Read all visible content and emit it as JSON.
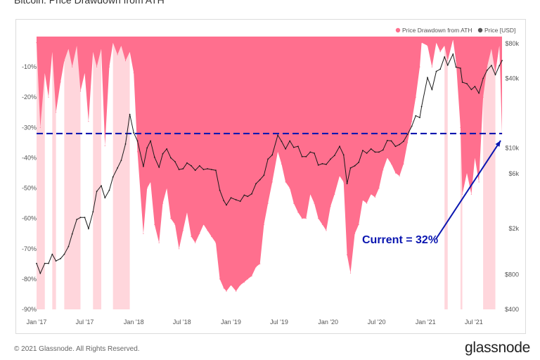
{
  "header": {
    "title": "Bitcoin: Price Drawdown from ATH"
  },
  "footer": {
    "copyright": "© 2021 Glassnode. All Rights Reserved.",
    "brand": "glassnode"
  },
  "colors": {
    "drawdown_fill": "#ff6f8e",
    "highlight_band": "#ffd6dc",
    "price_line": "#1a1a1a",
    "current_line": "#0a16b0",
    "annotation": "#0a16b0"
  },
  "chart_data": {
    "type": "area",
    "title": "Bitcoin: Price Drawdown from ATH",
    "legend": [
      {
        "name": "Price Drawdown from ATH",
        "color": "#ff6f8e",
        "marker": "circle"
      },
      {
        "name": "Price [USD]",
        "color": "#555555",
        "marker": "circle"
      }
    ],
    "legend_position": "top-right",
    "x_ticks": [
      "Jan '17",
      "Jul '17",
      "Jan '18",
      "Jul '18",
      "Jan '19",
      "Jul '19",
      "Jan '20",
      "Jul '20",
      "Jan '21",
      "Jul '21"
    ],
    "x_range": [
      "2017-01-01",
      "2021-10-15"
    ],
    "y_left": {
      "label": "Price Drawdown from ATH",
      "ticks": [
        "-10%",
        "-20%",
        "-30%",
        "-40%",
        "-50%",
        "-60%",
        "-70%",
        "-80%",
        "-90%"
      ],
      "range": [
        -90,
        0
      ]
    },
    "y_right": {
      "label": "Price [USD]",
      "scale": "log",
      "ticks": [
        "$80k",
        "$40k",
        "$10k",
        "$6k",
        "$2k",
        "$800",
        "$400"
      ],
      "range": [
        400,
        80000
      ]
    },
    "grid": false,
    "series": [
      {
        "name": "Price Drawdown from ATH",
        "unit": "percent",
        "x": [
          "2017-01-01",
          "2017-01-15",
          "2017-02-01",
          "2017-02-15",
          "2017-03-01",
          "2017-03-15",
          "2017-04-01",
          "2017-04-15",
          "2017-05-01",
          "2017-05-15",
          "2017-06-01",
          "2017-06-15",
          "2017-07-01",
          "2017-07-15",
          "2017-08-01",
          "2017-08-15",
          "2017-09-01",
          "2017-09-15",
          "2017-10-01",
          "2017-10-15",
          "2017-11-01",
          "2017-11-15",
          "2017-12-01",
          "2017-12-17",
          "2018-01-01",
          "2018-01-15",
          "2018-02-06",
          "2018-02-20",
          "2018-03-05",
          "2018-03-20",
          "2018-04-06",
          "2018-04-20",
          "2018-05-05",
          "2018-05-20",
          "2018-06-05",
          "2018-06-20",
          "2018-07-05",
          "2018-07-20",
          "2018-08-05",
          "2018-08-20",
          "2018-09-05",
          "2018-09-20",
          "2018-10-05",
          "2018-10-20",
          "2018-11-05",
          "2018-11-20",
          "2018-12-05",
          "2018-12-15",
          "2019-01-01",
          "2019-01-20",
          "2019-02-05",
          "2019-02-20",
          "2019-03-05",
          "2019-03-20",
          "2019-04-05",
          "2019-04-20",
          "2019-05-05",
          "2019-05-20",
          "2019-06-05",
          "2019-06-26",
          "2019-07-10",
          "2019-07-25",
          "2019-08-10",
          "2019-08-25",
          "2019-09-10",
          "2019-09-25",
          "2019-10-10",
          "2019-10-26",
          "2019-11-10",
          "2019-11-25",
          "2019-12-10",
          "2019-12-25",
          "2020-01-10",
          "2020-01-25",
          "2020-02-13",
          "2020-02-28",
          "2020-03-12",
          "2020-03-25",
          "2020-04-10",
          "2020-04-25",
          "2020-05-10",
          "2020-05-25",
          "2020-06-10",
          "2020-06-25",
          "2020-07-10",
          "2020-07-25",
          "2020-08-10",
          "2020-08-25",
          "2020-09-10",
          "2020-09-25",
          "2020-10-10",
          "2020-10-25",
          "2020-11-10",
          "2020-11-25",
          "2020-12-10",
          "2020-12-17",
          "2021-01-08",
          "2021-01-25",
          "2021-02-10",
          "2021-02-25",
          "2021-03-13",
          "2021-03-25",
          "2021-04-14",
          "2021-04-25",
          "2021-05-12",
          "2021-05-19",
          "2021-06-05",
          "2021-06-22",
          "2021-07-05",
          "2021-07-20",
          "2021-08-05",
          "2021-08-20",
          "2021-09-05",
          "2021-09-20",
          "2021-10-05",
          "2021-10-15"
        ],
        "values": [
          -2,
          -30,
          -12,
          -20,
          -5,
          -25,
          -15,
          -8,
          -4,
          -10,
          -3,
          -18,
          -12,
          -28,
          -5,
          -10,
          -4,
          -36,
          -10,
          -2,
          -6,
          -3,
          -8,
          -5,
          -12,
          -38,
          -65,
          -50,
          -48,
          -62,
          -68,
          -55,
          -50,
          -60,
          -62,
          -70,
          -64,
          -58,
          -66,
          -68,
          -65,
          -62,
          -64,
          -66,
          -68,
          -80,
          -83,
          -84,
          -82,
          -84,
          -82,
          -81,
          -80,
          -79,
          -76,
          -75,
          -62,
          -55,
          -48,
          -38,
          -42,
          -48,
          -50,
          -55,
          -58,
          -60,
          -60,
          -52,
          -55,
          -60,
          -62,
          -64,
          -56,
          -52,
          -46,
          -48,
          -72,
          -78,
          -65,
          -62,
          -54,
          -55,
          -52,
          -53,
          -50,
          -44,
          -40,
          -42,
          -45,
          -46,
          -42,
          -35,
          -28,
          -20,
          -10,
          -2,
          -3,
          -10,
          -2,
          -5,
          -3,
          -8,
          -1,
          -8,
          -30,
          -52,
          -45,
          -52,
          -40,
          -48,
          -20,
          -10,
          -4,
          -12,
          -3,
          -32
        ]
      },
      {
        "name": "Price [USD]",
        "unit": "USD",
        "x": [
          "2017-01-01",
          "2017-01-15",
          "2017-02-01",
          "2017-02-15",
          "2017-03-01",
          "2017-03-15",
          "2017-04-01",
          "2017-04-15",
          "2017-05-01",
          "2017-05-15",
          "2017-06-01",
          "2017-06-15",
          "2017-07-01",
          "2017-07-15",
          "2017-08-01",
          "2017-08-15",
          "2017-09-01",
          "2017-09-15",
          "2017-10-01",
          "2017-10-15",
          "2017-11-01",
          "2017-11-15",
          "2017-12-01",
          "2017-12-17",
          "2018-01-01",
          "2018-01-15",
          "2018-02-06",
          "2018-02-20",
          "2018-03-05",
          "2018-03-20",
          "2018-04-06",
          "2018-04-20",
          "2018-05-05",
          "2018-05-20",
          "2018-06-05",
          "2018-06-20",
          "2018-07-05",
          "2018-07-20",
          "2018-08-05",
          "2018-08-20",
          "2018-09-05",
          "2018-09-20",
          "2018-10-05",
          "2018-10-20",
          "2018-11-05",
          "2018-11-20",
          "2018-12-05",
          "2018-12-15",
          "2019-01-01",
          "2019-01-20",
          "2019-02-05",
          "2019-02-20",
          "2019-03-05",
          "2019-03-20",
          "2019-04-05",
          "2019-04-20",
          "2019-05-05",
          "2019-05-20",
          "2019-06-05",
          "2019-06-26",
          "2019-07-10",
          "2019-07-25",
          "2019-08-10",
          "2019-08-25",
          "2019-09-10",
          "2019-09-25",
          "2019-10-10",
          "2019-10-26",
          "2019-11-10",
          "2019-11-25",
          "2019-12-10",
          "2019-12-25",
          "2020-01-10",
          "2020-01-25",
          "2020-02-13",
          "2020-02-28",
          "2020-03-12",
          "2020-03-25",
          "2020-04-10",
          "2020-04-25",
          "2020-05-10",
          "2020-05-25",
          "2020-06-10",
          "2020-06-25",
          "2020-07-10",
          "2020-07-25",
          "2020-08-10",
          "2020-08-25",
          "2020-09-10",
          "2020-09-25",
          "2020-10-10",
          "2020-10-25",
          "2020-11-10",
          "2020-11-25",
          "2020-12-10",
          "2020-12-17",
          "2021-01-08",
          "2021-01-25",
          "2021-02-10",
          "2021-02-25",
          "2021-03-13",
          "2021-03-25",
          "2021-04-14",
          "2021-04-25",
          "2021-05-12",
          "2021-05-19",
          "2021-06-05",
          "2021-06-22",
          "2021-07-05",
          "2021-07-20",
          "2021-08-05",
          "2021-08-20",
          "2021-09-05",
          "2021-09-20",
          "2021-10-05",
          "2021-10-15"
        ],
        "values": [
          1000,
          820,
          1000,
          1000,
          1200,
          1050,
          1100,
          1200,
          1400,
          1800,
          2400,
          2500,
          2500,
          2000,
          2800,
          4200,
          4700,
          3700,
          4300,
          5600,
          6700,
          7800,
          10800,
          19500,
          13500,
          11500,
          6900,
          10000,
          11500,
          8300,
          6800,
          8900,
          9800,
          8200,
          7600,
          6500,
          6600,
          7400,
          7000,
          6400,
          7000,
          6500,
          6600,
          6500,
          6400,
          4300,
          3500,
          3200,
          3700,
          3550,
          3450,
          3900,
          3800,
          4000,
          4900,
          5300,
          5800,
          8000,
          8700,
          12900,
          11400,
          9800,
          11500,
          10100,
          10300,
          8400,
          8400,
          9200,
          9000,
          7100,
          7300,
          7200,
          8000,
          8600,
          10300,
          8700,
          4900,
          6700,
          7000,
          7500,
          9500,
          9000,
          9800,
          9200,
          9200,
          9600,
          11600,
          11500,
          10300,
          10700,
          11400,
          13100,
          15400,
          19000,
          18300,
          22800,
          40600,
          32000,
          46000,
          48000,
          61300,
          52000,
          64800,
          50000,
          49000,
          37000,
          36000,
          32000,
          34000,
          29800,
          40000,
          47000,
          51700,
          43000,
          51500,
          57000
        ]
      }
    ],
    "current_level": -32,
    "annotations": [
      {
        "text": "Current = 32%",
        "color": "#0a16b0"
      }
    ]
  }
}
